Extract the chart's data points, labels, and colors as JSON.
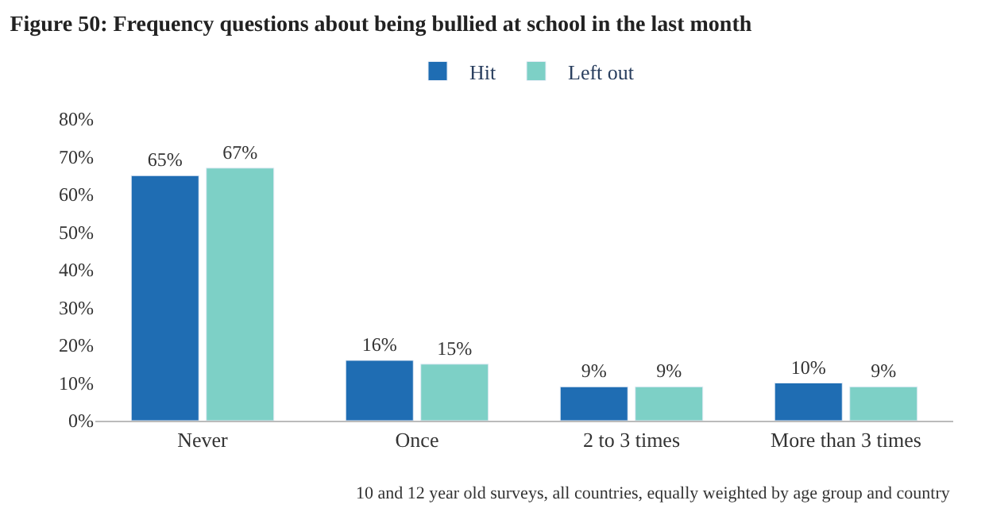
{
  "chart_data": {
    "type": "bar",
    "title": "Figure 50: Frequency questions about being bullied at school in the last month",
    "categories": [
      "Never",
      "Once",
      "2 to 3 times",
      "More than 3 times"
    ],
    "series": [
      {
        "name": "Hit",
        "color": "#1f6db3",
        "values": [
          65,
          16,
          9,
          10
        ],
        "value_labels": [
          "65%",
          "16%",
          "9%",
          "10%"
        ]
      },
      {
        "name": "Left out",
        "color": "#7dd0c6",
        "values": [
          67,
          15,
          9,
          9
        ],
        "value_labels": [
          "67%",
          "15%",
          "9%",
          "9%"
        ]
      }
    ],
    "ylim": [
      0,
      80
    ],
    "yticks": [
      {
        "value": 0,
        "label": "0%"
      },
      {
        "value": 10,
        "label": "10%"
      },
      {
        "value": 20,
        "label": "20%"
      },
      {
        "value": 30,
        "label": "30%"
      },
      {
        "value": 40,
        "label": "40%"
      },
      {
        "value": 50,
        "label": "50%"
      },
      {
        "value": 60,
        "label": "60%"
      },
      {
        "value": 70,
        "label": "70%"
      },
      {
        "value": 80,
        "label": "80%"
      }
    ],
    "grid": false,
    "legend": "top",
    "annotations": [
      "10 and 12 year old surveys, all countries, equally weighted by age group and country"
    ]
  }
}
